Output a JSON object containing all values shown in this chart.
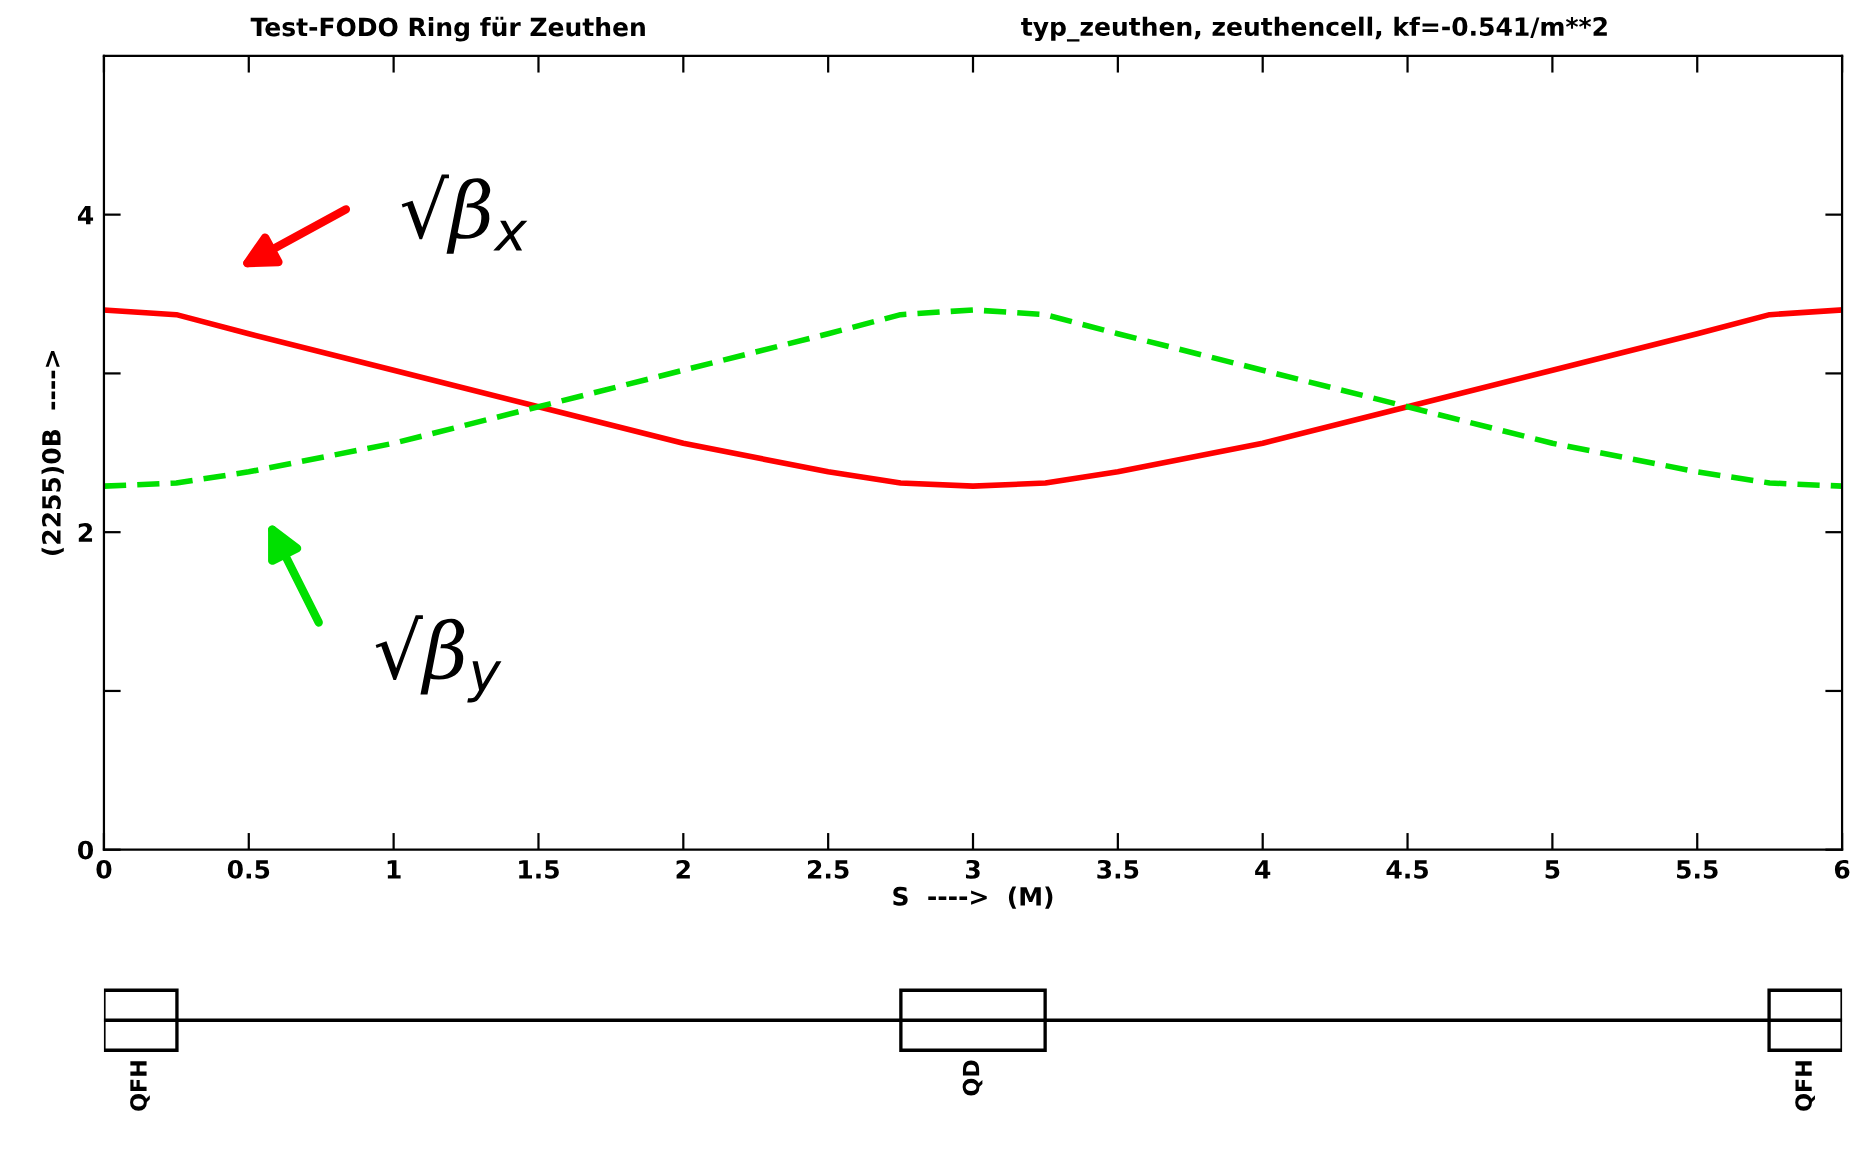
{
  "chart_data": [
    {
      "type": "line",
      "title": "Test-FODO Ring für Zeuthen",
      "subtitle": "typ_zeuthen, zeuthencell, kf=-0.541/m**2",
      "xlabel": "S  ---->  (M)",
      "ylabel": "(2255)0B  ---->",
      "x": [
        0,
        0.25,
        0.5,
        1,
        1.5,
        2,
        2.5,
        2.75,
        3,
        3.25,
        3.5,
        4,
        4.5,
        5,
        5.5,
        5.75,
        6
      ],
      "series": [
        {
          "color": "#ff0000",
          "line_style": "solid",
          "values": [
            3.4,
            3.37,
            3.25,
            3.02,
            2.79,
            2.56,
            2.38,
            2.31,
            2.29,
            2.31,
            2.38,
            2.56,
            2.79,
            3.02,
            3.25,
            3.37,
            3.4
          ]
        },
        {
          "color": "#00e000",
          "line_style": "dashed",
          "values": [
            2.29,
            2.31,
            2.38,
            2.56,
            2.79,
            3.02,
            3.25,
            3.37,
            3.4,
            3.37,
            3.25,
            3.02,
            2.79,
            2.56,
            2.38,
            2.31,
            2.29
          ]
        }
      ],
      "annotations": [
        "√β$_{x}$",
        "√β$_{y}$"
      ],
      "xlim": [
        0,
        6
      ],
      "ylim": [
        0,
        5
      ],
      "xticks": [
        0,
        0.5,
        1,
        1.5,
        2,
        2.5,
        3,
        3.5,
        4,
        4.5,
        5,
        5.5,
        6
      ],
      "yticks": [
        0,
        {
          "value": 1,
          "label": null
        },
        2,
        {
          "value": 3,
          "label": null
        },
        4
      ],
      "grid": false,
      "legend": false,
      "marker": "none"
    },
    {
      "type": "other",
      "categories": [
        "QFH",
        "QD",
        "QFH"
      ]
    }
  ]
}
